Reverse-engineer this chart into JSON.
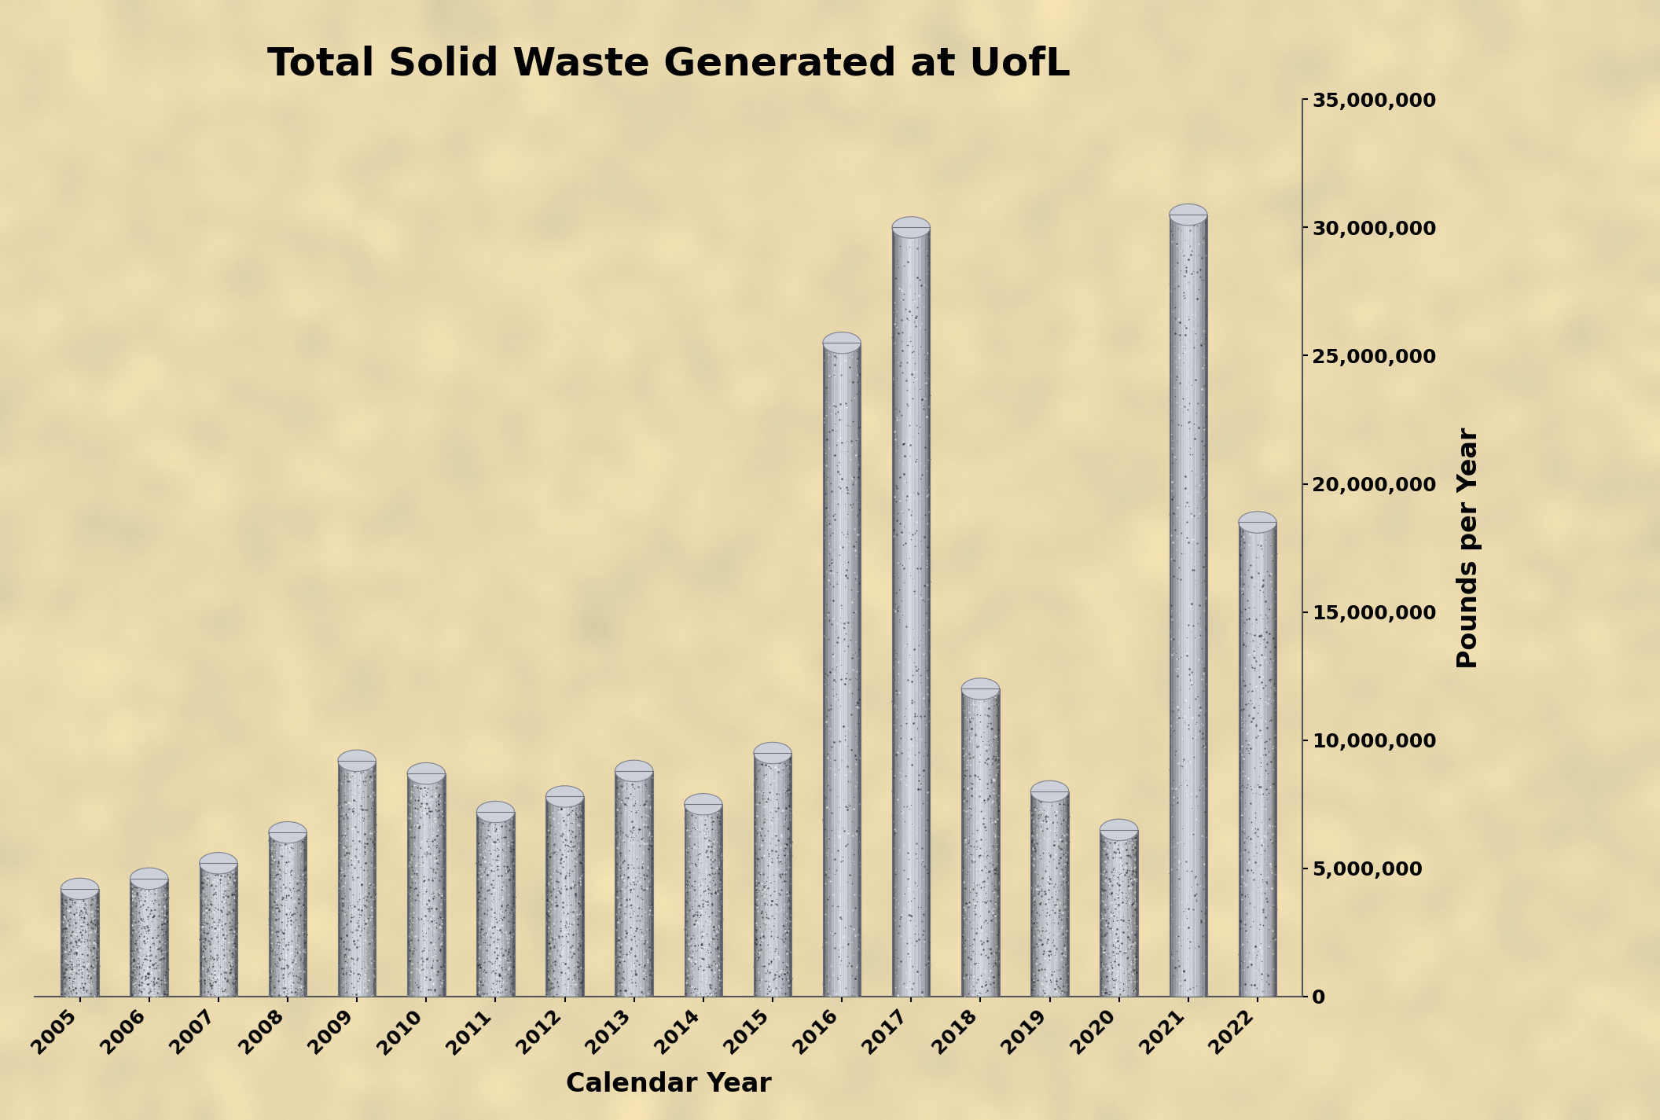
{
  "title": "Total Solid Waste Generated at UofL",
  "xlabel": "Calendar Year",
  "ylabel": "Pounds per Year",
  "years": [
    2005,
    2006,
    2007,
    2008,
    2009,
    2010,
    2011,
    2012,
    2013,
    2014,
    2015,
    2016,
    2017,
    2018,
    2019,
    2020,
    2021,
    2022
  ],
  "values": [
    4200000,
    4600000,
    5200000,
    6400000,
    9200000,
    8700000,
    7200000,
    7800000,
    8800000,
    7500000,
    9500000,
    25500000,
    30000000,
    12000000,
    8000000,
    6500000,
    30500000,
    18500000
  ],
  "ylim": [
    0,
    35000000
  ],
  "yticks": [
    0,
    5000000,
    10000000,
    15000000,
    20000000,
    25000000,
    30000000,
    35000000
  ],
  "bg_color": "#e8d9b5",
  "bg_color2": "#f0e6c8",
  "title_fontsize": 36,
  "axis_label_fontsize": 24,
  "tick_fontsize": 18,
  "bar_width": 0.55
}
